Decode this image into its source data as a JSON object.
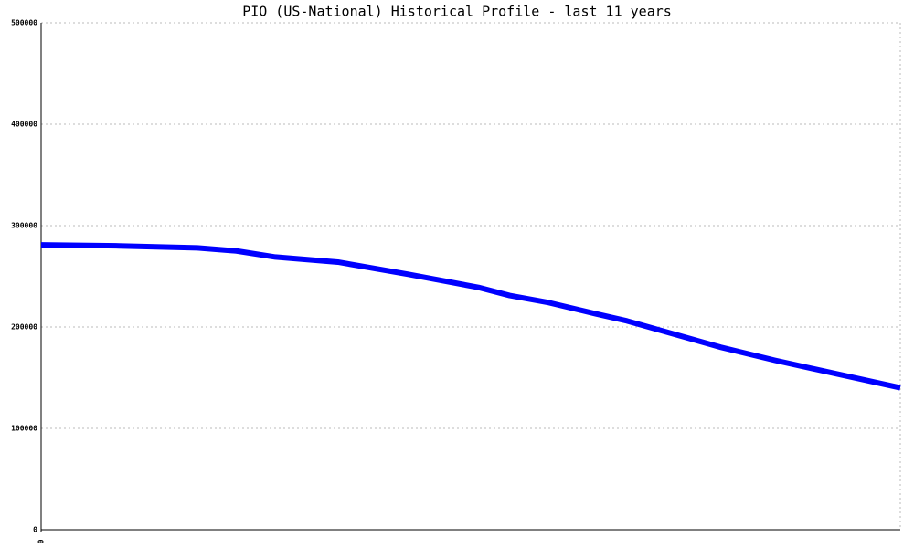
{
  "chart_data": {
    "type": "line",
    "title": "PIO (US-National) Historical Profile - last 11 years",
    "x": [
      0,
      1.0,
      2.0,
      2.5,
      3.0,
      3.8,
      4.7,
      5.6,
      6.0,
      6.5,
      7.1,
      7.5,
      8.1,
      8.7,
      9.4,
      11
    ],
    "series": [
      {
        "color": "#0000ff",
        "values": [
          281000,
          280000,
          278000,
          275000,
          269000,
          264000,
          252000,
          239000,
          231000,
          224000,
          213000,
          206000,
          193000,
          180000,
          167000,
          140000
        ]
      }
    ],
    "xlim": [
      0,
      11
    ],
    "xticks": [
      0
    ],
    "ylim": [
      0,
      500000
    ],
    "yticks": [
      0,
      100000,
      200000,
      300000,
      400000,
      500000
    ],
    "grid": true
  }
}
